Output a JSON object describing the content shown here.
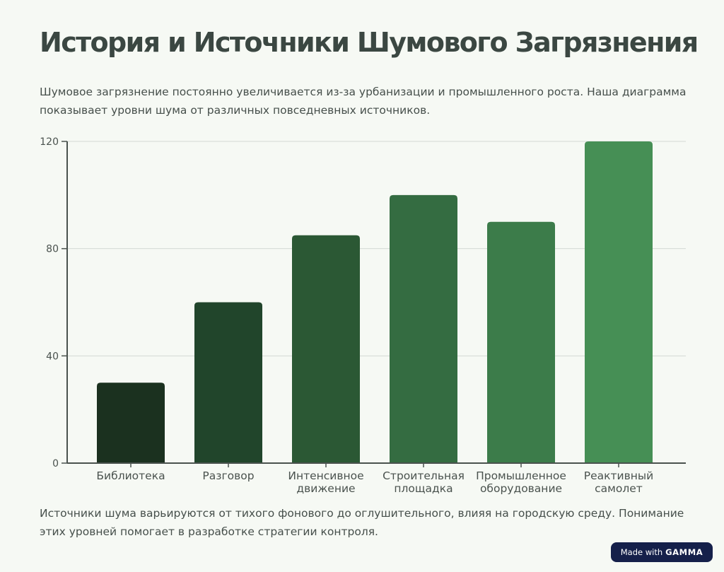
{
  "title": "История и Источники Шумового Загрязнения",
  "intro": "Шумовое загрязнение постоянно увеличивается из-за урбанизации и промышленного роста. Наша диаграмма показывает уровни шума от различных повседневных источников.",
  "outro": "Источники шума варьируются от тихого фонового до оглушительного, влияя на городскую среду. Понимание этих уровней помогает в разработке стратегии контроля.",
  "badge": {
    "prefix": "Made with",
    "brand": "GAMMA"
  },
  "chart_data": {
    "type": "bar",
    "title": "",
    "xlabel": "",
    "ylabel": "",
    "ylim": [
      0,
      120
    ],
    "yticks": [
      0,
      40,
      80,
      120
    ],
    "grid": true,
    "categories": [
      [
        "Библиотека"
      ],
      [
        "Разговор"
      ],
      [
        "Интенсивное",
        "движение"
      ],
      [
        "Строительная",
        "площадка"
      ],
      [
        "Промышленное",
        "оборудование"
      ],
      [
        "Реактивный",
        "самолет"
      ]
    ],
    "values": [
      30,
      60,
      85,
      100,
      90,
      120
    ],
    "colors": [
      "#1b311f",
      "#21452b",
      "#2b5834",
      "#346c41",
      "#3c7c4a",
      "#468f55"
    ]
  }
}
